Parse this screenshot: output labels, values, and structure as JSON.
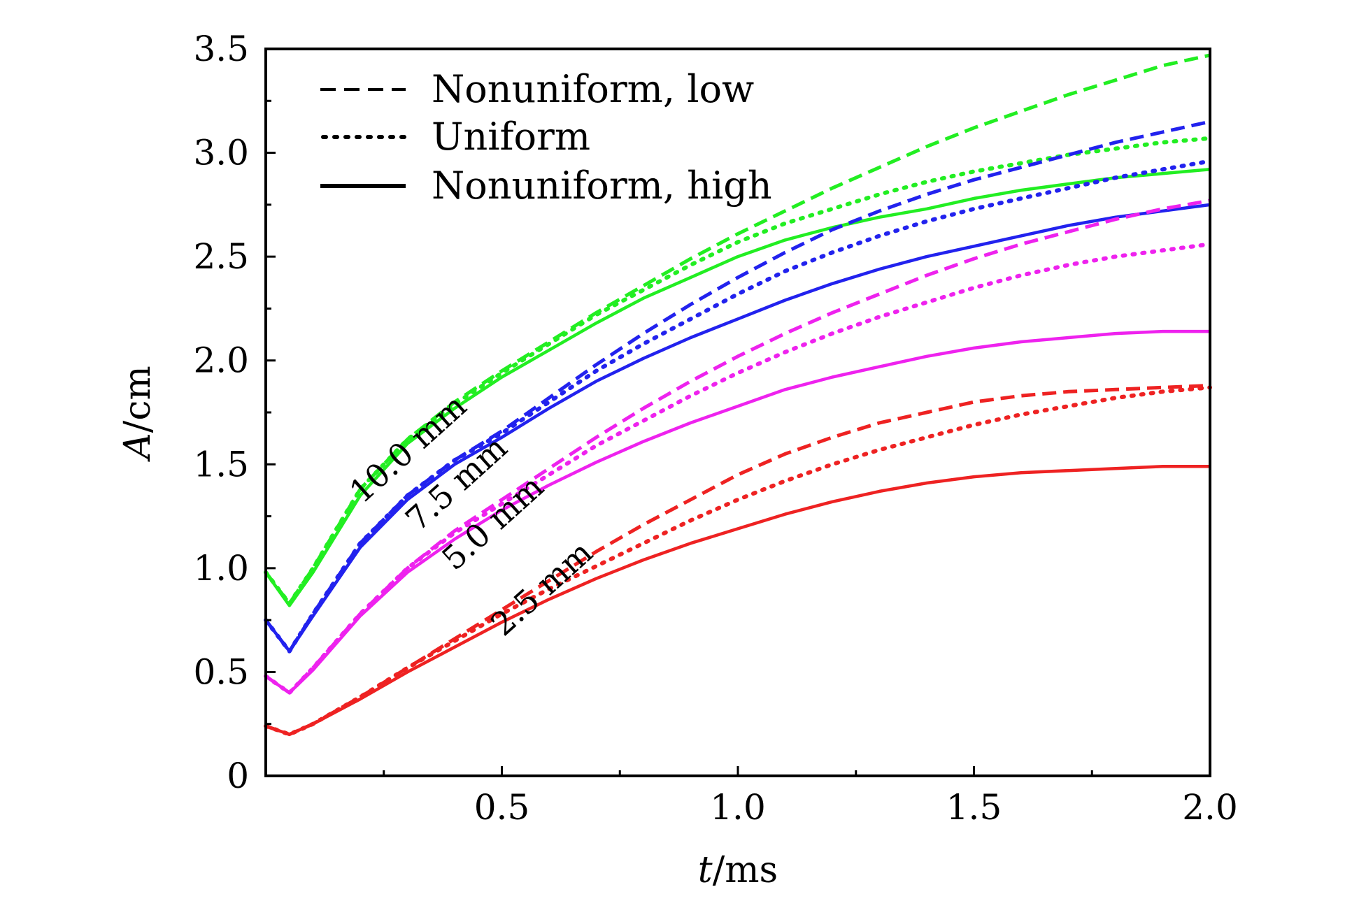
{
  "chart_data": {
    "type": "line",
    "title": "",
    "xlabel_var": "t",
    "xlabel_unit": "/ms",
    "ylabel_var": "A",
    "ylabel_unit": "/cm",
    "xlim": [
      0,
      2.0
    ],
    "ylim": [
      0,
      3.5
    ],
    "xticks": [
      0.5,
      1.0,
      1.5,
      2.0
    ],
    "xtick_labels": [
      "0.5",
      "1.0",
      "1.5",
      "2.0"
    ],
    "yticks": [
      0,
      0.5,
      1.0,
      1.5,
      2.0,
      2.5,
      3.0,
      3.5
    ],
    "ytick_labels": [
      "0",
      "0.5",
      "1.0",
      "1.5",
      "2.0",
      "2.5",
      "3.0",
      "3.5"
    ],
    "grid": false,
    "legend_position": "top-left",
    "legend": [
      {
        "label": "Nonuniform, low",
        "style": "dashed"
      },
      {
        "label": "Uniform",
        "style": "dotted"
      },
      {
        "label": "Nonuniform, high",
        "style": "solid"
      }
    ],
    "annotations": [
      "10.0 mm",
      "7.5 mm",
      "5.0 mm",
      "2.5 mm"
    ],
    "x": [
      0.0,
      0.05,
      0.1,
      0.2,
      0.3,
      0.4,
      0.5,
      0.6,
      0.7,
      0.8,
      0.9,
      1.0,
      1.1,
      1.2,
      1.3,
      1.4,
      1.5,
      1.6,
      1.7,
      1.8,
      1.9,
      2.0
    ],
    "series": [
      {
        "name": "10.0 mm, Nonuniform, low",
        "color": "#22ee22",
        "style": "dashed",
        "values": [
          0.98,
          0.83,
          1.0,
          1.38,
          1.62,
          1.8,
          1.95,
          2.09,
          2.23,
          2.36,
          2.49,
          2.61,
          2.72,
          2.83,
          2.93,
          3.03,
          3.12,
          3.2,
          3.28,
          3.35,
          3.42,
          3.47
        ]
      },
      {
        "name": "10.0 mm, Uniform",
        "color": "#22ee22",
        "style": "dotted",
        "values": [
          0.98,
          0.83,
          1.0,
          1.38,
          1.62,
          1.79,
          1.94,
          2.08,
          2.22,
          2.34,
          2.46,
          2.57,
          2.66,
          2.73,
          2.8,
          2.86,
          2.91,
          2.95,
          2.99,
          3.02,
          3.05,
          3.07
        ]
      },
      {
        "name": "10.0 mm, Nonuniform, high",
        "color": "#22ee22",
        "style": "solid",
        "values": [
          0.98,
          0.82,
          0.98,
          1.35,
          1.6,
          1.77,
          1.92,
          2.05,
          2.18,
          2.3,
          2.4,
          2.5,
          2.58,
          2.64,
          2.69,
          2.73,
          2.78,
          2.82,
          2.85,
          2.88,
          2.9,
          2.92
        ]
      },
      {
        "name": "7.5 mm, Nonuniform, low",
        "color": "#2222ee",
        "style": "dashed",
        "values": [
          0.75,
          0.6,
          0.78,
          1.12,
          1.35,
          1.52,
          1.66,
          1.82,
          1.98,
          2.13,
          2.27,
          2.4,
          2.52,
          2.63,
          2.72,
          2.8,
          2.87,
          2.93,
          2.99,
          3.05,
          3.1,
          3.15
        ]
      },
      {
        "name": "7.5 mm, Uniform",
        "color": "#2222ee",
        "style": "dotted",
        "values": [
          0.75,
          0.6,
          0.78,
          1.12,
          1.35,
          1.52,
          1.65,
          1.8,
          1.95,
          2.08,
          2.2,
          2.32,
          2.43,
          2.52,
          2.6,
          2.67,
          2.73,
          2.78,
          2.83,
          2.88,
          2.92,
          2.96
        ]
      },
      {
        "name": "7.5 mm, Nonuniform, high",
        "color": "#2222ee",
        "style": "solid",
        "values": [
          0.75,
          0.6,
          0.77,
          1.1,
          1.33,
          1.5,
          1.63,
          1.77,
          1.9,
          2.01,
          2.11,
          2.2,
          2.29,
          2.37,
          2.44,
          2.5,
          2.55,
          2.6,
          2.65,
          2.69,
          2.72,
          2.75
        ]
      },
      {
        "name": "5.0 mm, Nonuniform, low",
        "color": "#ee22ee",
        "style": "dashed",
        "values": [
          0.48,
          0.4,
          0.52,
          0.78,
          1.0,
          1.18,
          1.33,
          1.48,
          1.63,
          1.77,
          1.9,
          2.02,
          2.13,
          2.23,
          2.32,
          2.41,
          2.49,
          2.56,
          2.62,
          2.68,
          2.73,
          2.77
        ]
      },
      {
        "name": "5.0 mm, Uniform",
        "color": "#ee22ee",
        "style": "dotted",
        "values": [
          0.48,
          0.4,
          0.52,
          0.78,
          1.0,
          1.17,
          1.31,
          1.45,
          1.59,
          1.71,
          1.83,
          1.94,
          2.04,
          2.13,
          2.21,
          2.28,
          2.35,
          2.41,
          2.46,
          2.5,
          2.53,
          2.56
        ]
      },
      {
        "name": "5.0 mm, Nonuniform, high",
        "color": "#ee22ee",
        "style": "solid",
        "values": [
          0.48,
          0.4,
          0.51,
          0.77,
          0.98,
          1.14,
          1.28,
          1.4,
          1.51,
          1.61,
          1.7,
          1.78,
          1.86,
          1.92,
          1.97,
          2.02,
          2.06,
          2.09,
          2.11,
          2.13,
          2.14,
          2.14
        ]
      },
      {
        "name": "2.5 mm, Nonuniform, low",
        "color": "#ee2222",
        "style": "dashed",
        "values": [
          0.24,
          0.2,
          0.25,
          0.38,
          0.52,
          0.66,
          0.8,
          0.94,
          1.08,
          1.21,
          1.33,
          1.45,
          1.55,
          1.63,
          1.7,
          1.75,
          1.8,
          1.83,
          1.85,
          1.86,
          1.87,
          1.88
        ]
      },
      {
        "name": "2.5 mm, Uniform",
        "color": "#ee2222",
        "style": "dotted",
        "values": [
          0.24,
          0.2,
          0.25,
          0.38,
          0.52,
          0.65,
          0.78,
          0.9,
          1.01,
          1.12,
          1.23,
          1.33,
          1.42,
          1.5,
          1.57,
          1.63,
          1.69,
          1.74,
          1.78,
          1.82,
          1.85,
          1.87
        ]
      },
      {
        "name": "2.5 mm, Nonuniform, high",
        "color": "#ee2222",
        "style": "solid",
        "values": [
          0.24,
          0.2,
          0.25,
          0.37,
          0.5,
          0.62,
          0.74,
          0.85,
          0.95,
          1.04,
          1.12,
          1.19,
          1.26,
          1.32,
          1.37,
          1.41,
          1.44,
          1.46,
          1.47,
          1.48,
          1.49,
          1.49
        ]
      }
    ]
  }
}
